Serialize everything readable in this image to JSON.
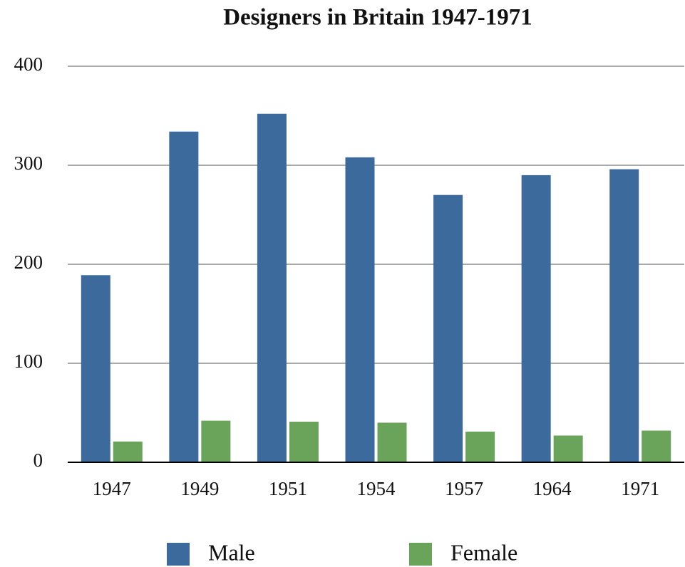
{
  "chart_data": {
    "type": "bar",
    "title": "Designers in Britain 1947-1971",
    "categories": [
      "1947",
      "1949",
      "1951",
      "1954",
      "1957",
      "1964",
      "1971"
    ],
    "series": [
      {
        "name": "Male",
        "color": "#3c6a9c",
        "values": [
          189,
          334,
          352,
          308,
          270,
          290,
          296
        ]
      },
      {
        "name": "Female",
        "color": "#6aa35a",
        "values": [
          21,
          42,
          41,
          40,
          31,
          27,
          32
        ]
      }
    ],
    "ylim": [
      0,
      400
    ],
    "yticks": [
      0,
      100,
      200,
      300,
      400
    ],
    "grid": true,
    "legend": "bottom"
  }
}
